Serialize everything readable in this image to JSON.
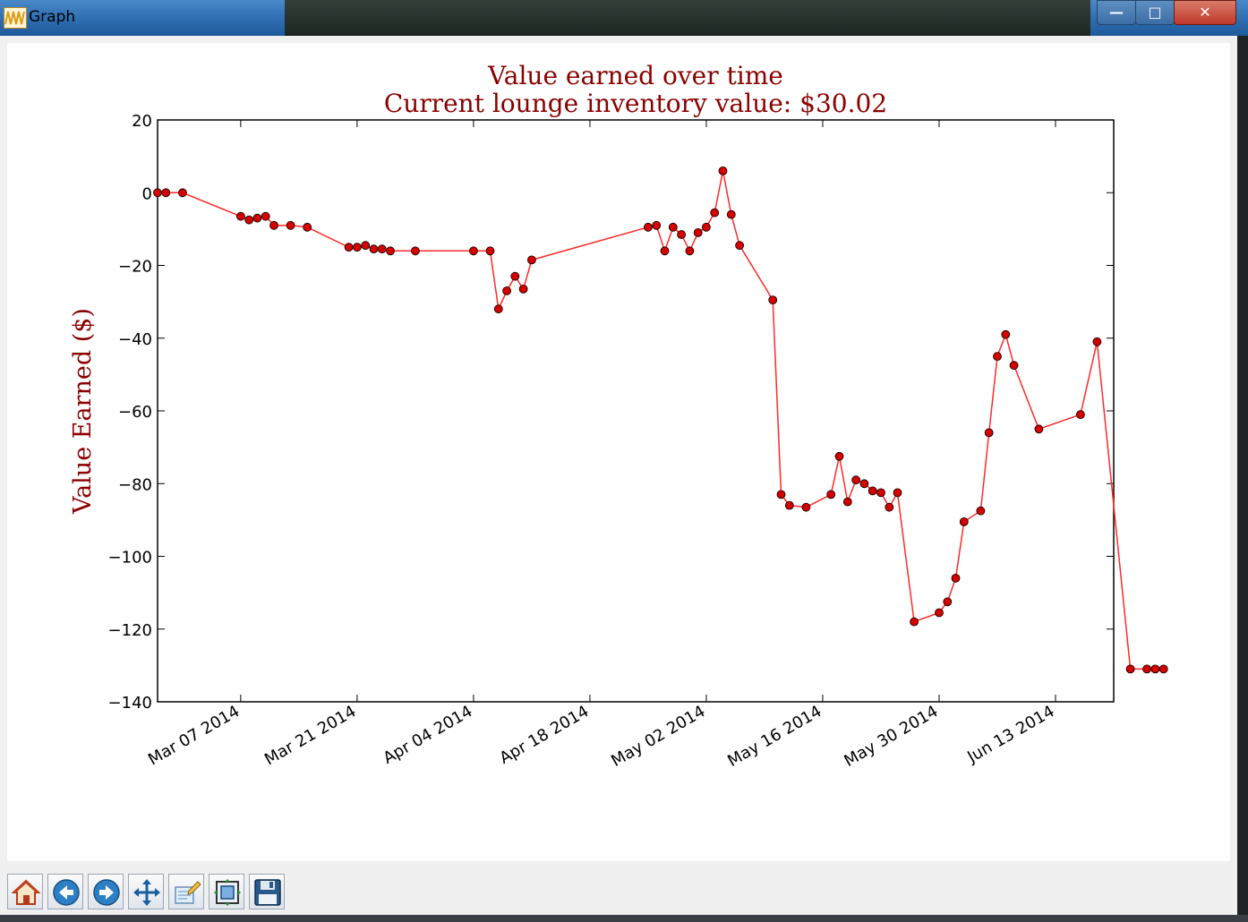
{
  "window": {
    "title": "Graph",
    "buttons": {
      "minimize": "—",
      "maximize": "□",
      "close": "✕"
    }
  },
  "toolbar": {
    "items": [
      {
        "name": "home-button",
        "icon": "home-icon"
      },
      {
        "name": "back-button",
        "icon": "back-arrow-icon"
      },
      {
        "name": "forward-button",
        "icon": "forward-arrow-icon"
      },
      {
        "name": "pan-button",
        "icon": "move-arrows-icon"
      },
      {
        "name": "zoom-button",
        "icon": "zoom-rect-icon"
      },
      {
        "name": "configure-subplots-button",
        "icon": "subplots-icon"
      },
      {
        "name": "save-button",
        "icon": "floppy-disk-icon"
      }
    ]
  },
  "chart_data": {
    "type": "line",
    "title": "Value earned over time",
    "subtitle": "Current lounge inventory value: $30.02",
    "xlabel": "",
    "ylabel": "Value Earned ($)",
    "x_axis_type": "date",
    "xlim": [
      "2014-02-25",
      "2014-06-20"
    ],
    "ylim": [
      -140,
      20
    ],
    "xtick_labels": [
      "Mar 07 2014",
      "Mar 21 2014",
      "Apr 04 2014",
      "Apr 18 2014",
      "May 02 2014",
      "May 16 2014",
      "May 30 2014",
      "Jun 13 2014"
    ],
    "xtick_dates": [
      "2014-03-07",
      "2014-03-21",
      "2014-04-04",
      "2014-04-18",
      "2014-05-02",
      "2014-05-16",
      "2014-05-30",
      "2014-06-13"
    ],
    "ytick_labels": [
      "20",
      "0",
      "−20",
      "−40",
      "−60",
      "−80",
      "−100",
      "−120",
      "−140"
    ],
    "ytick_values": [
      20,
      0,
      -20,
      -40,
      -60,
      -80,
      -100,
      -120,
      -140
    ],
    "grid": false,
    "colors": {
      "line": "#ff2a2a",
      "marker": "#d40000",
      "marker_edge": "#000000",
      "title": "#8b0000",
      "ylabel": "#8b0000"
    },
    "series": [
      {
        "x": [
          "2014-02-25",
          "2014-02-26",
          "2014-02-28",
          "2014-03-07",
          "2014-03-08",
          "2014-03-09",
          "2014-03-10",
          "2014-03-11",
          "2014-03-13",
          "2014-03-15",
          "2014-03-20",
          "2014-03-21",
          "2014-03-22",
          "2014-03-23",
          "2014-03-24",
          "2014-03-25",
          "2014-03-28",
          "2014-04-04",
          "2014-04-06",
          "2014-04-07",
          "2014-04-08",
          "2014-04-09",
          "2014-04-10",
          "2014-04-11",
          "2014-04-25",
          "2014-04-26",
          "2014-04-27",
          "2014-04-28",
          "2014-04-29",
          "2014-04-30",
          "2014-05-01",
          "2014-05-02",
          "2014-05-03",
          "2014-05-04",
          "2014-05-05",
          "2014-05-06",
          "2014-05-10",
          "2014-05-11",
          "2014-05-12",
          "2014-05-14",
          "2014-05-17",
          "2014-05-18",
          "2014-05-19",
          "2014-05-20",
          "2014-05-21",
          "2014-05-22",
          "2014-05-23",
          "2014-05-24",
          "2014-05-25",
          "2014-05-27",
          "2014-05-30",
          "2014-05-31",
          "2014-06-01",
          "2014-06-02",
          "2014-06-04",
          "2014-06-05",
          "2014-06-06",
          "2014-06-07",
          "2014-06-08",
          "2014-06-11",
          "2014-06-16",
          "2014-06-18",
          "2014-06-22",
          "2014-06-24",
          "2014-06-25",
          "2014-06-26"
        ],
        "y": [
          0,
          0,
          0,
          -6.5,
          -7.5,
          -7,
          -6.5,
          -9,
          -9,
          -9.5,
          -15,
          -15,
          -14.5,
          -15.5,
          -15.5,
          -16,
          -16,
          -16,
          -16,
          -32,
          -27,
          -23,
          -26.5,
          -18.5,
          -9.5,
          -9,
          -16,
          -9.5,
          -11.5,
          -16,
          -11,
          -9.5,
          -5.5,
          6,
          -6,
          -14.5,
          -29.5,
          -83,
          -86,
          -86.5,
          -83,
          -72.5,
          -85,
          -79,
          -80,
          -82,
          -82.5,
          -86.5,
          -82.5,
          -118,
          -115.5,
          -112.5,
          -106,
          -90.5,
          -87.5,
          -66,
          -45,
          -39,
          -47.5,
          -65,
          -61,
          -41,
          -131,
          -131,
          -131,
          -131
        ]
      }
    ]
  }
}
